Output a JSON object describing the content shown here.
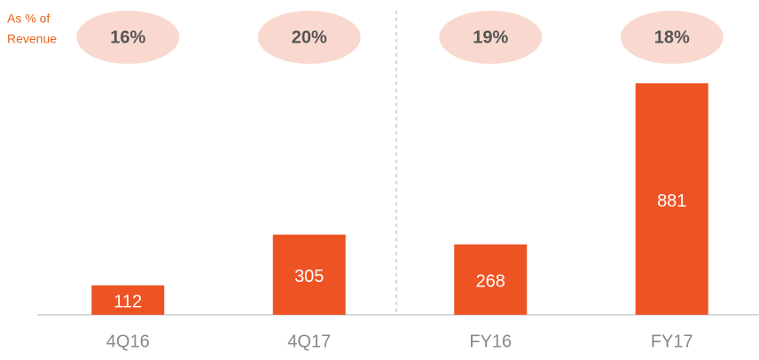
{
  "chart_data": {
    "type": "bar",
    "categories": [
      "4Q16",
      "4Q17",
      "FY16",
      "FY17"
    ],
    "values": [
      112,
      305,
      268,
      881
    ],
    "color": "#ee5324",
    "revenue_share": {
      "label_lines": [
        "As % of",
        "Revenue"
      ],
      "values": [
        16,
        20,
        19,
        18
      ],
      "value_labels": [
        "16%",
        "20%",
        "19%",
        "18%"
      ],
      "color": "#f9d9cf"
    }
  }
}
